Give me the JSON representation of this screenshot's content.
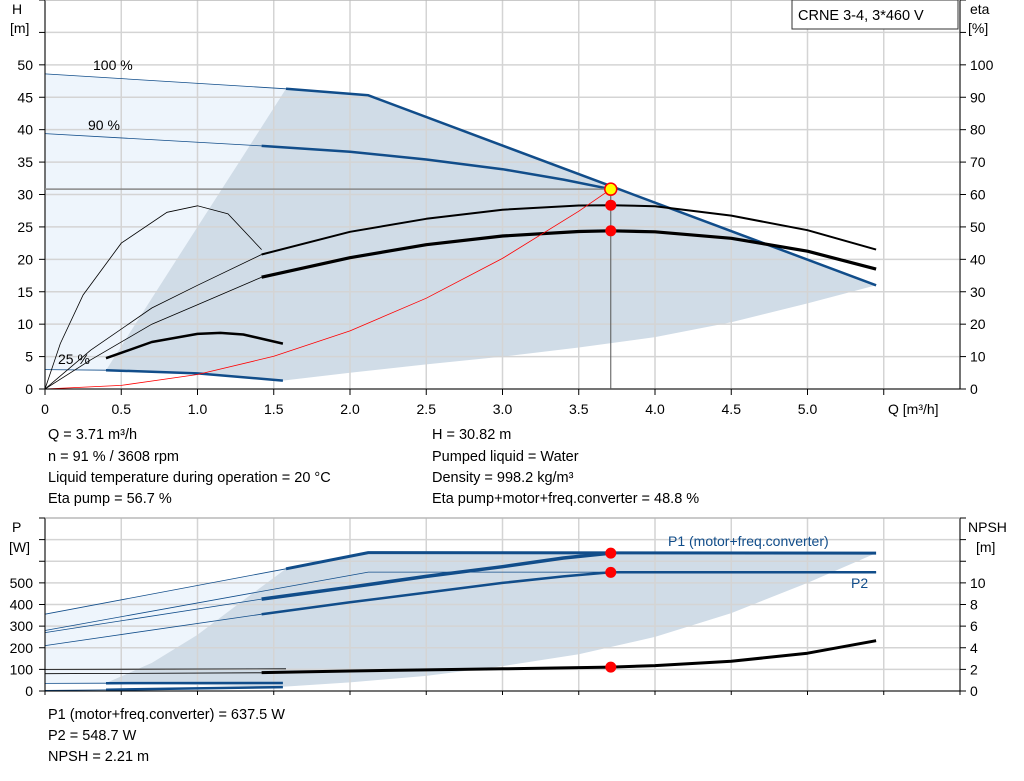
{
  "colors": {
    "pump_curve": "#114d8a",
    "efficiency": "#000000",
    "system_curve": "#ff0000",
    "shade_dark": "#d0dce7",
    "shade_light": "#eef5fc",
    "duty_point": "#ff0000",
    "duty_point_head": "#ffff00",
    "grid": "#d4d4d4"
  },
  "legend_box": "CRNE 3-4, 3*460 V",
  "chart_data": [
    {
      "type": "line",
      "xlabel": "Q [m³/h]",
      "ylabel": [
        "H",
        "[m]"
      ],
      "y2label": [
        "eta",
        "[%]"
      ],
      "xlim": [
        0,
        6
      ],
      "ylim": [
        0,
        60
      ],
      "y2lim": [
        0,
        120
      ],
      "xticks": [
        "0",
        "0.5",
        "1.0",
        "1.5",
        "2.0",
        "2.5",
        "3.0",
        "3.5",
        "4.0",
        "4.5",
        "5.0"
      ],
      "yticks": [
        "0",
        "5",
        "10",
        "15",
        "20",
        "25",
        "30",
        "35",
        "40",
        "45",
        "50"
      ],
      "y2ticks": [
        "0",
        "10",
        "20",
        "30",
        "40",
        "50",
        "60",
        "70",
        "80",
        "90",
        "100"
      ],
      "grid": true,
      "speed_labels": [
        "100 %",
        "90 %",
        "25 %"
      ],
      "series": [
        {
          "id": "head-100",
          "axis": "H",
          "thin": [
            [
              0,
              48.6
            ],
            [
              1.58,
              46.3
            ]
          ],
          "thick": [
            [
              1.58,
              46.3
            ],
            [
              2.12,
              45.3
            ],
            [
              3.71,
              31.3
            ],
            [
              5.45,
              16
            ]
          ]
        },
        {
          "id": "head-90",
          "axis": "H",
          "thin": [
            [
              0,
              39.4
            ],
            [
              1.42,
              37.5
            ]
          ],
          "thick": [
            [
              1.42,
              37.5
            ],
            [
              2,
              36.6
            ],
            [
              2.5,
              35.4
            ],
            [
              3,
              33.9
            ],
            [
              3.4,
              32.3
            ],
            [
              3.71,
              30.82
            ]
          ]
        },
        {
          "id": "head-25",
          "axis": "H",
          "thin": [
            [
              0,
              3
            ],
            [
              0.4,
              2.9
            ]
          ],
          "thick": [
            [
              0.4,
              2.9
            ],
            [
              1,
              2.4
            ],
            [
              1.56,
              1.3
            ]
          ]
        },
        {
          "id": "eta-pump",
          "axis": "eta",
          "thin": [
            [
              0,
              0
            ],
            [
              0.3,
              12
            ],
            [
              0.7,
              25
            ],
            [
              1,
              32
            ],
            [
              1.42,
              41.5
            ]
          ],
          "thick": [
            [
              1.42,
              41.5
            ],
            [
              2,
              48.5
            ],
            [
              2.5,
              52.5
            ],
            [
              3,
              55.3
            ],
            [
              3.5,
              56.6
            ],
            [
              3.71,
              56.7
            ],
            [
              4,
              56.4
            ],
            [
              4.5,
              53.5
            ],
            [
              5,
              49
            ],
            [
              5.45,
              43
            ]
          ],
          "width": 2
        },
        {
          "id": "eta-total",
          "axis": "eta",
          "thin": [
            [
              0,
              0
            ],
            [
              0.3,
              9
            ],
            [
              0.7,
              20
            ],
            [
              1,
              26
            ],
            [
              1.42,
              34.5
            ]
          ],
          "thick": [
            [
              1.42,
              34.5
            ],
            [
              2,
              40.5
            ],
            [
              2.5,
              44.5
            ],
            [
              3,
              47.2
            ],
            [
              3.5,
              48.6
            ],
            [
              3.71,
              48.8
            ],
            [
              4,
              48.5
            ],
            [
              4.5,
              46.5
            ],
            [
              5,
              42.5
            ],
            [
              5.45,
              37
            ]
          ],
          "width": 3.2
        },
        {
          "id": "eta-25",
          "axis": "eta",
          "thin": [
            [
              0,
              0
            ],
            [
              0.1,
              14
            ],
            [
              0.25,
              29
            ],
            [
              0.5,
              45
            ],
            [
              0.8,
              54.5
            ],
            [
              1.0,
              56.5
            ],
            [
              1.2,
              54
            ],
            [
              1.42,
              43
            ]
          ],
          "thick": [
            [
              0.4,
              9.5
            ],
            [
              0.7,
              14.5
            ],
            [
              1,
              17
            ],
            [
              1.15,
              17.3
            ],
            [
              1.3,
              16.8
            ],
            [
              1.56,
              14
            ]
          ],
          "width": 2.5
        },
        {
          "id": "system-curve",
          "axis": "H",
          "points": [
            [
              0,
              0
            ],
            [
              0.5,
              0.56
            ],
            [
              1,
              2.24
            ],
            [
              1.5,
              5.04
            ],
            [
              2,
              8.96
            ],
            [
              2.5,
              14
            ],
            [
              3,
              20.15
            ],
            [
              3.5,
              27.43
            ],
            [
              3.71,
              30.82
            ]
          ]
        }
      ],
      "area_operating": [
        [
          1.58,
          46.3
        ],
        [
          2.12,
          45.3
        ],
        [
          3.71,
          31.3
        ],
        [
          5.45,
          16
        ],
        [
          5,
          13.2
        ],
        [
          4.5,
          10.3
        ],
        [
          4,
          8
        ],
        [
          3.5,
          6.4
        ],
        [
          3,
          5
        ],
        [
          2.5,
          3.8
        ],
        [
          2,
          2.5
        ],
        [
          1.56,
          1.3
        ],
        [
          1,
          2.4
        ],
        [
          0.4,
          2.9
        ],
        [
          0.7,
          14
        ],
        [
          1.0,
          25
        ],
        [
          1.3,
          36
        ],
        [
          1.58,
          46.3
        ]
      ],
      "area_extended": [
        [
          0,
          48.6
        ],
        [
          1.58,
          46.3
        ],
        [
          1.3,
          36
        ],
        [
          1.0,
          25
        ],
        [
          0.7,
          14
        ],
        [
          0.4,
          2.9
        ],
        [
          0,
          3
        ]
      ],
      "duty_point": {
        "Q": 3.71,
        "H": 30.82,
        "eta_pump": 56.7,
        "eta_total": 48.8
      }
    },
    {
      "type": "line",
      "ylabel": [
        "P",
        "[W]"
      ],
      "y2label": [
        "NPSH",
        "[m]"
      ],
      "xlim": [
        0,
        6
      ],
      "ylim": [
        0,
        800
      ],
      "y2lim": [
        0,
        16
      ],
      "yticks": [
        "0",
        "100",
        "200",
        "300",
        "400",
        "500"
      ],
      "y2ticks": [
        "0",
        "2",
        "4",
        "6",
        "8",
        "10"
      ],
      "grid": true,
      "series_labels": [
        "P1 (motor+freq.converter)",
        "P2"
      ],
      "series": [
        {
          "id": "p1-100",
          "axis": "P",
          "thin": [
            [
              0,
              355
            ],
            [
              1.58,
              565
            ]
          ],
          "thick": [
            [
              1.58,
              565
            ],
            [
              2.12,
              640
            ],
            [
              5.45,
              637.5
            ]
          ],
          "width": 3
        },
        {
          "id": "p2-100",
          "axis": "P",
          "thin": [
            [
              0,
              280
            ],
            [
              2.12,
              550
            ],
            [
              5.45,
              548.7
            ]
          ]
        },
        {
          "id": "p2-100-right",
          "axis": "P",
          "thick": [
            [
              3.71,
              548.7
            ],
            [
              5.45,
              548.7
            ]
          ],
          "width": 2.5
        },
        {
          "id": "p1-90",
          "axis": "P",
          "thin": [
            [
              0,
              270
            ],
            [
              1.42,
              425
            ]
          ],
          "thick": [
            [
              1.42,
              425
            ],
            [
              2,
              480
            ],
            [
              2.5,
              530
            ],
            [
              3,
              575
            ],
            [
              3.4,
              615
            ],
            [
              3.71,
              637.5
            ]
          ],
          "width": 3.5
        },
        {
          "id": "p2-90",
          "axis": "P",
          "thin": [
            [
              0,
              210
            ],
            [
              1.42,
              355
            ]
          ],
          "thick": [
            [
              1.42,
              355
            ],
            [
              2,
              410
            ],
            [
              2.5,
              455
            ],
            [
              3,
              500
            ],
            [
              3.4,
              530
            ],
            [
              3.71,
              548.7
            ]
          ],
          "width": 2.5
        },
        {
          "id": "p1-25",
          "axis": "P",
          "thin": [
            [
              0,
              35
            ],
            [
              0.4,
              36
            ]
          ],
          "thick": [
            [
              0.4,
              36
            ],
            [
              1.56,
              37
            ]
          ],
          "width": 2.5
        },
        {
          "id": "p2-25",
          "axis": "P",
          "thin": [
            [
              0,
              3
            ],
            [
              0.4,
              5
            ]
          ],
          "thick": [
            [
              0.4,
              6
            ],
            [
              1.56,
              18
            ]
          ],
          "width": 2.5
        },
        {
          "id": "npsh",
          "axis": "NPSH",
          "thin": [
            [
              0,
              2.0
            ],
            [
              1.58,
              2.05
            ]
          ],
          "thick": [
            [
              1.42,
              1.7
            ],
            [
              2,
              1.85
            ],
            [
              2.5,
              1.95
            ],
            [
              3,
              2.05
            ],
            [
              3.71,
              2.21
            ],
            [
              4,
              2.35
            ],
            [
              4.5,
              2.75
            ],
            [
              5,
              3.5
            ],
            [
              5.45,
              4.65
            ]
          ],
          "width": 3
        },
        {
          "id": "npsh-90",
          "axis": "NPSH",
          "thin": [
            [
              0,
              1.6
            ],
            [
              1.42,
              1.68
            ]
          ]
        }
      ],
      "area_operating": [
        [
          1.58,
          565
        ],
        [
          2.12,
          640
        ],
        [
          5.45,
          637.5
        ],
        [
          5,
          500
        ],
        [
          4.5,
          360
        ],
        [
          4,
          250
        ],
        [
          3.5,
          170
        ],
        [
          3,
          115
        ],
        [
          2.5,
          70
        ],
        [
          2,
          40
        ],
        [
          1.56,
          20
        ],
        [
          0.4,
          37
        ],
        [
          0.7,
          130
        ],
        [
          1.0,
          260
        ],
        [
          1.3,
          420
        ],
        [
          1.58,
          565
        ]
      ],
      "area_extended": [
        [
          0,
          355
        ],
        [
          1.58,
          565
        ],
        [
          1.3,
          420
        ],
        [
          1.0,
          260
        ],
        [
          0.7,
          130
        ],
        [
          0.4,
          37
        ],
        [
          0,
          35
        ]
      ],
      "duty_point": {
        "Q": 3.71,
        "P1": 637.5,
        "P2": 548.7,
        "NPSH": 2.21
      }
    }
  ],
  "results_top": {
    "left": [
      "Q = 3.71 m³/h",
      "n = 91 % / 3608 rpm",
      "Liquid temperature during operation = 20 °C",
      "Eta pump = 56.7 %"
    ],
    "right": [
      "H = 30.82 m",
      "Pumped liquid = Water",
      "Density = 998.2 kg/m³",
      "Eta pump+motor+freq.converter = 48.8 %"
    ]
  },
  "results_bottom": [
    "P1 (motor+freq.converter) = 637.5 W",
    "P2 = 548.7 W",
    "NPSH = 2.21 m"
  ]
}
